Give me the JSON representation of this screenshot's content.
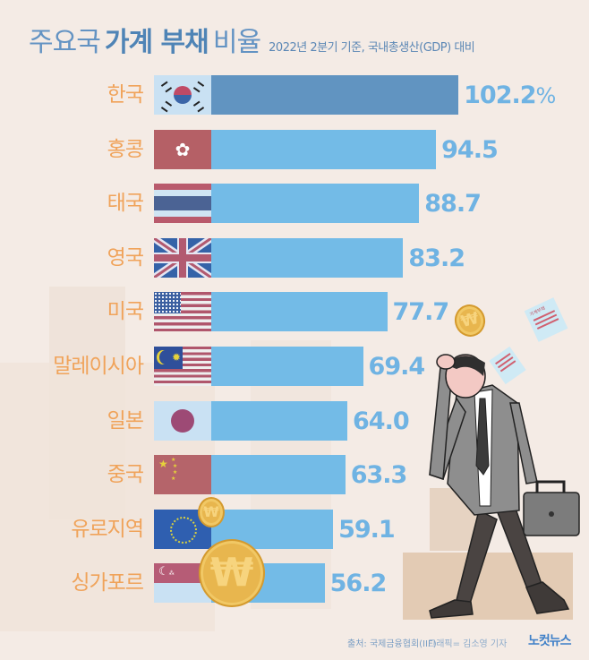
{
  "title": {
    "part1": "주요국",
    "part2": "가계 부채",
    "part3": "비율",
    "subtitle": "2022년 2분기 기준, 국내총생산(GDP) 대비"
  },
  "rows": [
    {
      "label": "한국",
      "value_text": "102.2",
      "suffix": "%",
      "flag": "south-korea"
    },
    {
      "label": "홍콩",
      "value_text": "94.5",
      "suffix": "",
      "flag": "hong-kong"
    },
    {
      "label": "태국",
      "value_text": "88.7",
      "suffix": "",
      "flag": "thailand"
    },
    {
      "label": "영국",
      "value_text": "83.2",
      "suffix": "",
      "flag": "united-kingdom"
    },
    {
      "label": "미국",
      "value_text": "77.7",
      "suffix": "",
      "flag": "united-states"
    },
    {
      "label": "말레이시아",
      "value_text": "69.4",
      "suffix": "",
      "flag": "malaysia"
    },
    {
      "label": "일본",
      "value_text": "64.0",
      "suffix": "",
      "flag": "japan"
    },
    {
      "label": "중국",
      "value_text": "63.3",
      "suffix": "",
      "flag": "china"
    },
    {
      "label": "유로지역",
      "value_text": "59.1",
      "suffix": "",
      "flag": "euro-area"
    },
    {
      "label": "싱가포르",
      "value_text": "56.2",
      "suffix": "",
      "flag": "singapore"
    }
  ],
  "footer": {
    "source": "출처: 국제금융협회(IIF)",
    "credit": "그래픽= 김소영 기자",
    "logo": "노컷뉴스"
  },
  "decor": {
    "coin_symbol": "₩",
    "paper_text": "가계부채"
  },
  "colors": {
    "background": "#f4ebe5",
    "bar": "#73bbe7",
    "bar_highlight": "#6194c1",
    "label": "#f0a35a",
    "value": "#6fb3e3",
    "title": "#4f84b6"
  },
  "chart_data": {
    "type": "bar",
    "orientation": "horizontal",
    "title": "주요국 가계 부채 비율",
    "subtitle": "2022년 2분기 기준, 국내총생산(GDP) 대비",
    "categories": [
      "한국",
      "홍콩",
      "태국",
      "영국",
      "미국",
      "말레이시아",
      "일본",
      "중국",
      "유로지역",
      "싱가포르"
    ],
    "values": [
      102.2,
      94.5,
      88.7,
      83.2,
      77.7,
      69.4,
      64.0,
      63.3,
      59.1,
      56.2
    ],
    "unit": "%",
    "xlabel": "",
    "ylabel": "",
    "grid": false,
    "legend": "none",
    "highlight": "한국",
    "source": "국제금융협회(IIF)"
  }
}
